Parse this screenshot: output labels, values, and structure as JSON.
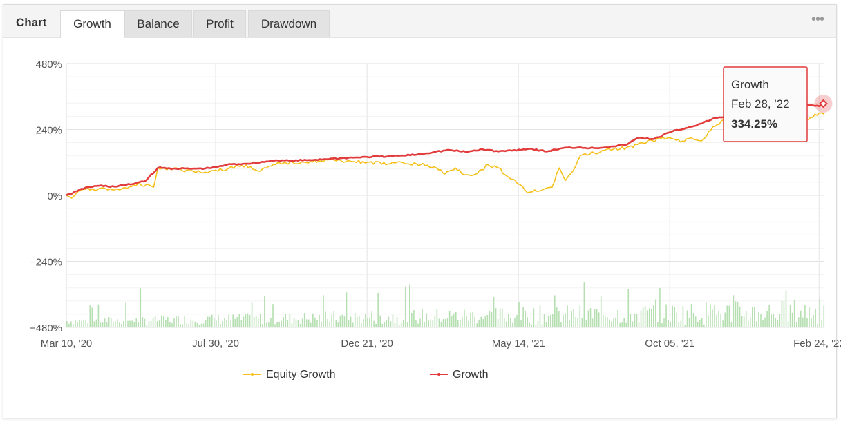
{
  "tabs": {
    "title": "Chart",
    "items": [
      {
        "label": "Growth",
        "active": true
      },
      {
        "label": "Balance",
        "active": false
      },
      {
        "label": "Profit",
        "active": false
      },
      {
        "label": "Drawdown",
        "active": false
      }
    ],
    "more_icon": "more-horizontal-icon"
  },
  "chart_data": {
    "type": "line",
    "y_ticks": [
      "480%",
      "240%",
      "0%",
      "−240%",
      "−480%"
    ],
    "y_tick_values": [
      480,
      240,
      0,
      -240,
      -480
    ],
    "ylim": [
      -480,
      480
    ],
    "x_ticks": [
      "Mar 10, '20",
      "Jul 30, '20",
      "Dec 21, '20",
      "May 14, '21",
      "Oct 05, '21",
      "Feb 24, '22"
    ],
    "x_tick_dates": [
      "2020-03-10",
      "2020-07-30",
      "2020-12-21",
      "2021-05-14",
      "2021-10-05",
      "2022-02-24"
    ],
    "x_range": [
      "2020-03-10",
      "2022-03-01"
    ],
    "grid": true,
    "legend_position": "bottom-center",
    "series": [
      {
        "name": "Equity Growth",
        "color": "#f5c019",
        "points": [
          [
            "2020-03-10",
            0
          ],
          [
            "2020-03-15",
            -10
          ],
          [
            "2020-03-20",
            10
          ],
          [
            "2020-03-28",
            22
          ],
          [
            "2020-04-10",
            25
          ],
          [
            "2020-04-25",
            20
          ],
          [
            "2020-05-05",
            28
          ],
          [
            "2020-05-15",
            35
          ],
          [
            "2020-05-25",
            40
          ],
          [
            "2020-06-01",
            30
          ],
          [
            "2020-06-05",
            100
          ],
          [
            "2020-06-20",
            98
          ],
          [
            "2020-07-05",
            90
          ],
          [
            "2020-07-20",
            85
          ],
          [
            "2020-07-30",
            92
          ],
          [
            "2020-08-10",
            95
          ],
          [
            "2020-08-20",
            108
          ],
          [
            "2020-09-01",
            105
          ],
          [
            "2020-09-10",
            88
          ],
          [
            "2020-09-25",
            112
          ],
          [
            "2020-10-05",
            118
          ],
          [
            "2020-10-20",
            122
          ],
          [
            "2020-11-05",
            125
          ],
          [
            "2020-11-20",
            128
          ],
          [
            "2020-12-05",
            125
          ],
          [
            "2020-12-21",
            120
          ],
          [
            "2021-01-10",
            115
          ],
          [
            "2021-01-25",
            118
          ],
          [
            "2021-02-10",
            112
          ],
          [
            "2021-02-25",
            100
          ],
          [
            "2021-03-05",
            78
          ],
          [
            "2021-03-15",
            100
          ],
          [
            "2021-03-25",
            75
          ],
          [
            "2021-04-05",
            80
          ],
          [
            "2021-04-15",
            112
          ],
          [
            "2021-04-25",
            100
          ],
          [
            "2021-05-05",
            65
          ],
          [
            "2021-05-15",
            40
          ],
          [
            "2021-05-20",
            20
          ],
          [
            "2021-05-25",
            12
          ],
          [
            "2021-06-05",
            18
          ],
          [
            "2021-06-15",
            30
          ],
          [
            "2021-06-22",
            100
          ],
          [
            "2021-06-28",
            55
          ],
          [
            "2021-07-05",
            90
          ],
          [
            "2021-07-12",
            145
          ],
          [
            "2021-07-25",
            155
          ],
          [
            "2021-08-10",
            165
          ],
          [
            "2021-08-25",
            175
          ],
          [
            "2021-09-10",
            190
          ],
          [
            "2021-09-25",
            205
          ],
          [
            "2021-10-05",
            210
          ],
          [
            "2021-10-15",
            195
          ],
          [
            "2021-10-25",
            210
          ],
          [
            "2021-11-05",
            200
          ],
          [
            "2021-11-15",
            250
          ],
          [
            "2021-11-25",
            275
          ],
          [
            "2021-12-10",
            280
          ],
          [
            "2021-12-25",
            285
          ],
          [
            "2022-01-10",
            270
          ],
          [
            "2022-01-25",
            260
          ],
          [
            "2022-02-10",
            275
          ],
          [
            "2022-02-24",
            300
          ],
          [
            "2022-03-01",
            295
          ]
        ]
      },
      {
        "name": "Growth",
        "color": "#e23b3b",
        "points": [
          [
            "2020-03-10",
            0
          ],
          [
            "2020-03-20",
            15
          ],
          [
            "2020-03-28",
            28
          ],
          [
            "2020-04-10",
            35
          ],
          [
            "2020-04-25",
            32
          ],
          [
            "2020-05-10",
            40
          ],
          [
            "2020-05-25",
            55
          ],
          [
            "2020-06-05",
            100
          ],
          [
            "2020-06-20",
            98
          ],
          [
            "2020-07-05",
            97
          ],
          [
            "2020-07-20",
            98
          ],
          [
            "2020-07-30",
            102
          ],
          [
            "2020-08-10",
            112
          ],
          [
            "2020-08-25",
            115
          ],
          [
            "2020-09-10",
            120
          ],
          [
            "2020-09-25",
            128
          ],
          [
            "2020-10-10",
            126
          ],
          [
            "2020-10-25",
            128
          ],
          [
            "2020-11-10",
            132
          ],
          [
            "2020-11-25",
            135
          ],
          [
            "2020-12-10",
            138
          ],
          [
            "2020-12-21",
            140
          ],
          [
            "2021-01-10",
            142
          ],
          [
            "2021-01-25",
            145
          ],
          [
            "2021-02-10",
            150
          ],
          [
            "2021-02-25",
            160
          ],
          [
            "2021-03-10",
            165
          ],
          [
            "2021-03-25",
            158
          ],
          [
            "2021-04-10",
            168
          ],
          [
            "2021-04-25",
            160
          ],
          [
            "2021-05-10",
            165
          ],
          [
            "2021-05-25",
            170
          ],
          [
            "2021-06-10",
            160
          ],
          [
            "2021-06-25",
            172
          ],
          [
            "2021-07-10",
            175
          ],
          [
            "2021-07-25",
            172
          ],
          [
            "2021-08-10",
            178
          ],
          [
            "2021-08-25",
            185
          ],
          [
            "2021-09-05",
            210
          ],
          [
            "2021-09-20",
            205
          ],
          [
            "2021-10-05",
            230
          ],
          [
            "2021-10-20",
            245
          ],
          [
            "2021-11-05",
            262
          ],
          [
            "2021-11-15",
            280
          ],
          [
            "2021-11-25",
            285
          ],
          [
            "2021-12-10",
            310
          ],
          [
            "2021-12-25",
            318
          ],
          [
            "2022-01-10",
            322
          ],
          [
            "2022-01-25",
            326
          ],
          [
            "2022-02-10",
            330
          ],
          [
            "2022-02-24",
            325
          ],
          [
            "2022-02-28",
            334.25
          ]
        ]
      }
    ],
    "tooltip": {
      "series": "Growth",
      "date_label": "Feb 28, '22",
      "value_label": "334.25%",
      "date": "2022-02-28",
      "value": 334.25,
      "border_color": "#e23b3b"
    },
    "volume_bar_color": "#b5dfb0"
  }
}
